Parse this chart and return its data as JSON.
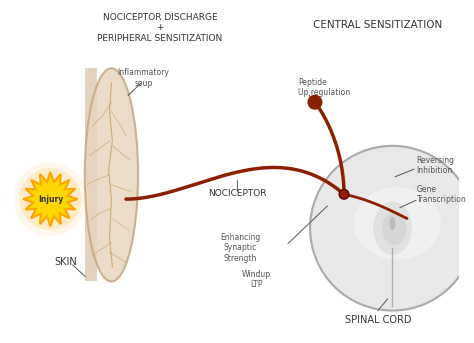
{
  "bg_color": "#ffffff",
  "title_left": "NOCICEPTOR DISCHARGE\n+\nPERIPHERAL SENSITIZATION",
  "title_right": "CENTRAL SENSITIZATION",
  "label_skin": "SKIN",
  "label_injury": "Injury",
  "label_inflammatory": "Inflammatory\nsoup",
  "label_nociceptor": "NOCICEPTOR",
  "label_peptide": "Peptide\nUp regulation",
  "label_reversing": "Reversing\nInhibition",
  "label_gene": "Gene\nTranscription",
  "label_enhancing": "Enhancing\nSynaptic\nStrength",
  "label_windup": "Windup\nLTP",
  "label_spinalcord": "SPINAL CORD",
  "nerve_color": "#8B2000",
  "node_color": "#8B2000",
  "skin_color": "#E8D5C0",
  "skin_edge_color": "#C4A882",
  "injury_yellow": "#FFD700",
  "injury_orange": "#FFA500",
  "spinal_cord_color": "#E8E8E8",
  "spinal_cord_edge": "#AAAAAA",
  "nerve_branch_color": "#C8A060",
  "text_color": "#333333",
  "annotation_color": "#555555"
}
